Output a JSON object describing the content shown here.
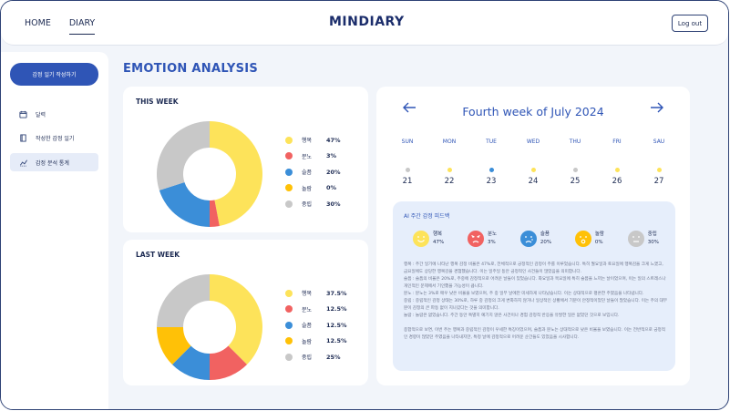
{
  "header": {
    "nav": [
      "HOME",
      "DIARY"
    ],
    "logo": "MINDIARY",
    "logout_label": "Log out"
  },
  "sidebar": {
    "write_label": "감정 일기 작성하기",
    "items": [
      {
        "label": "달력",
        "icon": "calendar-icon"
      },
      {
        "label": "작성한 감정 일기",
        "icon": "book-icon"
      },
      {
        "label": "감정 분석 통계",
        "icon": "chart-icon",
        "active": true
      }
    ]
  },
  "page_title": "EMOTION ANALYSIS",
  "emotion_colors": {
    "행복": "#fde35a",
    "분노": "#f16261",
    "슬픔": "#3b8ed8",
    "놀람": "#ffc107",
    "중립": "#c8c8c8"
  },
  "chart_data": [
    {
      "type": "pie",
      "title": "THIS WEEK",
      "categories": [
        "행복",
        "분노",
        "슬픔",
        "놀람",
        "중립"
      ],
      "values": [
        47,
        3,
        20,
        0,
        30
      ],
      "labels": [
        "47%",
        "3%",
        "20%",
        "0%",
        "30%"
      ]
    },
    {
      "type": "pie",
      "title": "LAST WEEK",
      "categories": [
        "행복",
        "분노",
        "슬픔",
        "놀람",
        "중립"
      ],
      "values": [
        37.5,
        12.5,
        12.5,
        12.5,
        25
      ],
      "labels": [
        "37.5%",
        "12.5%",
        "12.5%",
        "12.5%",
        "25%"
      ]
    }
  ],
  "calendar": {
    "week_title": "Fourth week of July 2024",
    "days": [
      {
        "name": "SUN",
        "date": "21",
        "dot": "#c8c8c8"
      },
      {
        "name": "MON",
        "date": "22",
        "dot": "#fde35a"
      },
      {
        "name": "TUE",
        "date": "23",
        "dot": "#3b8ed8"
      },
      {
        "name": "WED",
        "date": "24",
        "dot": "#fde35a"
      },
      {
        "name": "THU",
        "date": "25",
        "dot": "#c8c8c8"
      },
      {
        "name": "FRI",
        "date": "26",
        "dot": "#fde35a"
      },
      {
        "name": "SAU",
        "date": "27",
        "dot": "#fde35a"
      }
    ]
  },
  "ai_feedback": {
    "title": "AI 주간 감정 피드백",
    "emotions": [
      {
        "name": "행복",
        "pct": "47%",
        "color": "#fde35a",
        "icon": "happy-face-icon"
      },
      {
        "name": "분노",
        "pct": "3%",
        "color": "#f16261",
        "icon": "angry-face-icon"
      },
      {
        "name": "슬픔",
        "pct": "20%",
        "color": "#3b8ed8",
        "icon": "sad-face-icon"
      },
      {
        "name": "놀람",
        "pct": "0%",
        "color": "#ffc107",
        "icon": "surprised-face-icon"
      },
      {
        "name": "중립",
        "pct": "30%",
        "color": "#c8c8c8",
        "icon": "neutral-face-icon"
      }
    ],
    "paragraphs": [
      "행복 : 주간 일기에 나타난 행복 감정 비율은 47%로, 전체적으로 긍정적인 감정이 주를 이루었습니다. 특히 월요일과 토요일에 행복감을 크게 느꼈고, 금요일에도 상당한 행복감을 경험했습니다. 이는 일주일 동안 긍정적인 사건들이 많았음을 의미합니다.",
      "슬픔 : 슬픔의 비율은 20%로, 주중에 감정적으로 어려운 날들이 있었습니다. 화요일과 목요일에 특히 슬픔을 느끼는 날이었으며, 이는 일의 스트레스나 개인적인 문제에서 기인했을 가능성이 큽니다.",
      "분노 : 분노는 3%로 매우 낮은 비율을 보였으며, 주 중 일부 날에만 미세하게 나타났습니다. 이는 상대적으로 평온한 주였음을 나타냅니다.",
      "중립 : 중립적인 감정 상태는 30%로, 하루 중 감정의 크게 변화하지 않거나 일상적인 상황에서 기분이 안정적이었던 날들이 많았습니다. 이는 주의 대부분이 감정의 큰 파동 없이 지나갔다는 것을 의미합니다.",
      "놀람 : 놀람은 없었습니다. 주간 동안 특별히 예기치 않은 사건이나 경험 감정적 반응을 유발한 일은 없었던 것으로 보입니다.",
      "종합적으로 보면, 이번 주는 행복과 중립적인 감정이 우세한 특징이었으며, 슬픔과 분노는 상대적으로 낮은 비율을 보였습니다. 이는 전반적으로 긍정적인 경향이 많았던 주였음을 나타내지만, 특정 날에 감정적으로 어려운 순간들도 있었음을 시사합니다."
    ]
  }
}
